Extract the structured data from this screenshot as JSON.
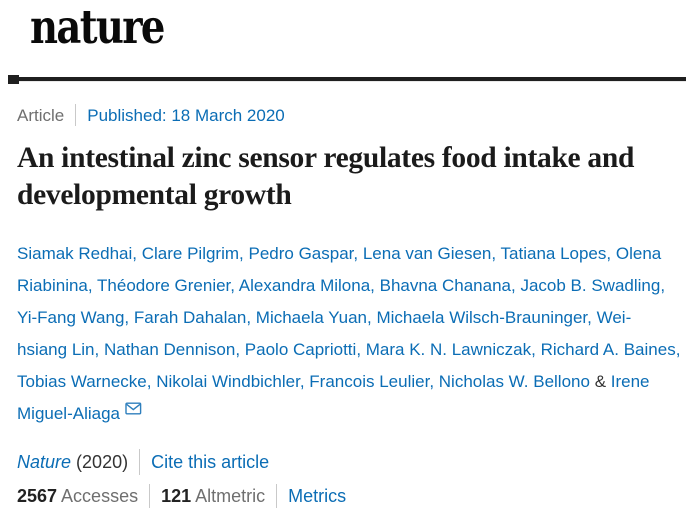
{
  "header": {
    "logo": "nature"
  },
  "article_meta": {
    "type_label": "Article",
    "published_label": "Published: 18 March 2020"
  },
  "title": "An intestinal zinc sensor regulates food intake and developmental growth",
  "authors": {
    "names": [
      "Siamak Redhai",
      "Clare Pilgrim",
      "Pedro Gaspar",
      "Lena van Giesen",
      "Tatiana Lopes",
      "Olena Riabinina",
      "Théodore Grenier",
      "Alexandra Milona",
      "Bhavna Chanana",
      "Jacob B. Swadling",
      "Yi-Fang Wang",
      "Farah Dahalan",
      "Michaela Yuan",
      "Michaela Wilsch-Brauninger",
      "Wei-hsiang Lin",
      "Nathan Dennison",
      "Paolo Capriotti",
      "Mara K. N. Lawniczak",
      "Richard A. Baines",
      "Tobias Warnecke",
      "Nikolai Windbichler",
      "Francois Leulier",
      "Nicholas W. Bellono"
    ],
    "last_separator": "&",
    "last_author": "Irene Miguel-Aliaga",
    "email_icon": "envelope-icon"
  },
  "citation": {
    "journal": "Nature",
    "year": "(2020)",
    "cite_link": "Cite this article"
  },
  "metrics": {
    "accesses_count": "2567",
    "accesses_label": "Accesses",
    "altmetric_count": "121",
    "altmetric_label": "Altmetric",
    "metrics_link": "Metrics"
  },
  "colors": {
    "link_blue": "#0b6db5",
    "text_dark": "#222222",
    "text_gray": "#6f6f6f",
    "separator_gray": "#c9c9c9",
    "rule_black": "#1f1f1f"
  }
}
